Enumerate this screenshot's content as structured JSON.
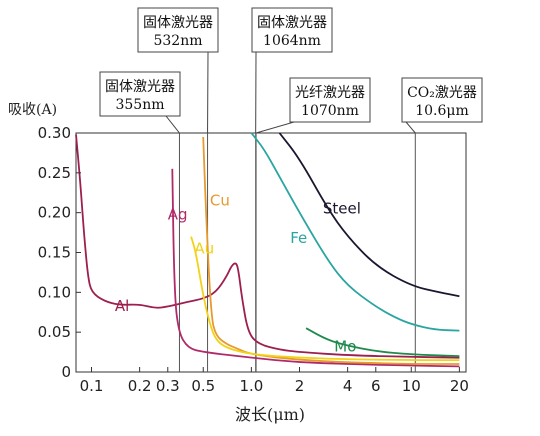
{
  "chart_data": {
    "type": "line",
    "title": "",
    "ylabel": "吸收(A)",
    "xlabel": "波长(μm)",
    "x_scale": "log",
    "xlim": [
      0.08,
      22
    ],
    "ylim": [
      0,
      0.3
    ],
    "grid": false,
    "x_ticks": [
      {
        "value": 0.1,
        "label": "0.1"
      },
      {
        "value": 0.2,
        "label": "0.2"
      },
      {
        "value": 0.3,
        "label": "0.3"
      },
      {
        "value": 0.5,
        "label": "0.5"
      },
      {
        "value": 1.0,
        "label": "1.0"
      },
      {
        "value": 2,
        "label": "2"
      },
      {
        "value": 4,
        "label": "4"
      },
      {
        "value": 6,
        "label": "6"
      },
      {
        "value": 10,
        "label": "10"
      },
      {
        "value": 20,
        "label": "20"
      }
    ],
    "y_ticks": [
      {
        "value": 0,
        "label": "0"
      },
      {
        "value": 0.05,
        "label": "0.05"
      },
      {
        "value": 0.1,
        "label": "0.10"
      },
      {
        "value": 0.15,
        "label": "0.15"
      },
      {
        "value": 0.2,
        "label": "0.20"
      },
      {
        "value": 0.25,
        "label": "0.25"
      },
      {
        "value": 0.3,
        "label": "0.30"
      }
    ],
    "laser_lines": [
      {
        "name": "固体激光器",
        "sub": "355nm",
        "x": 0.355,
        "level": 3
      },
      {
        "name": "固体激光器",
        "sub": "532nm",
        "x": 0.532,
        "level": 1
      },
      {
        "name": "固体激光器",
        "sub": "1064nm",
        "x": 1.064,
        "level": 1
      },
      {
        "name": "光纤激光器",
        "sub": "1070nm",
        "x": 1.07,
        "level": 2
      },
      {
        "name": "CO₂激光器",
        "sub": "10.6μm",
        "x": 10.6,
        "level": 2
      }
    ],
    "series": [
      {
        "name": "Al",
        "color": "#9c1f4e",
        "label_at": [
          0.14,
          0.083
        ],
        "points": [
          [
            0.08,
            0.298
          ],
          [
            0.085,
            0.24
          ],
          [
            0.09,
            0.17
          ],
          [
            0.095,
            0.12
          ],
          [
            0.1,
            0.1
          ],
          [
            0.12,
            0.089
          ],
          [
            0.15,
            0.084
          ],
          [
            0.2,
            0.085
          ],
          [
            0.25,
            0.08
          ],
          [
            0.3,
            0.082
          ],
          [
            0.4,
            0.088
          ],
          [
            0.5,
            0.092
          ],
          [
            0.6,
            0.1
          ],
          [
            0.7,
            0.12
          ],
          [
            0.75,
            0.133
          ],
          [
            0.8,
            0.138
          ],
          [
            0.83,
            0.128
          ],
          [
            0.87,
            0.095
          ],
          [
            0.95,
            0.05
          ],
          [
            1.1,
            0.035
          ],
          [
            1.5,
            0.028
          ],
          [
            2,
            0.025
          ],
          [
            4,
            0.021
          ],
          [
            10,
            0.019
          ],
          [
            20,
            0.018
          ]
        ]
      },
      {
        "name": "Ag",
        "color": "#b02a6a",
        "label_at": [
          0.3,
          0.198
        ],
        "points": [
          [
            0.32,
            0.255
          ],
          [
            0.33,
            0.1
          ],
          [
            0.35,
            0.05
          ],
          [
            0.4,
            0.03
          ],
          [
            0.5,
            0.025
          ],
          [
            1,
            0.018
          ],
          [
            2,
            0.012
          ],
          [
            4,
            0.01
          ],
          [
            10,
            0.008
          ],
          [
            20,
            0.007
          ]
        ]
      },
      {
        "name": "Cu",
        "color": "#e79a2e",
        "label_at": [
          0.55,
          0.215
        ],
        "points": [
          [
            0.5,
            0.295
          ],
          [
            0.52,
            0.2
          ],
          [
            0.56,
            0.07
          ],
          [
            0.6,
            0.045
          ],
          [
            0.7,
            0.035
          ],
          [
            0.8,
            0.03
          ],
          [
            1,
            0.022
          ],
          [
            2,
            0.015
          ],
          [
            4,
            0.012
          ],
          [
            10,
            0.01
          ],
          [
            20,
            0.01
          ]
        ]
      },
      {
        "name": "Au",
        "color": "#f2d214",
        "label_at": [
          0.44,
          0.155
        ],
        "points": [
          [
            0.42,
            0.17
          ],
          [
            0.45,
            0.15
          ],
          [
            0.5,
            0.095
          ],
          [
            0.55,
            0.06
          ],
          [
            0.6,
            0.04
          ],
          [
            0.7,
            0.03
          ],
          [
            1,
            0.022
          ],
          [
            2,
            0.018
          ],
          [
            4,
            0.016
          ],
          [
            10,
            0.015
          ],
          [
            20,
            0.015
          ]
        ]
      },
      {
        "name": "Fe",
        "color": "#2aa5a0",
        "label_at": [
          1.75,
          0.168
        ],
        "points": [
          [
            1.0,
            0.3
          ],
          [
            1.2,
            0.28
          ],
          [
            1.5,
            0.245
          ],
          [
            2,
            0.2
          ],
          [
            3,
            0.14
          ],
          [
            4,
            0.108
          ],
          [
            6,
            0.082
          ],
          [
            8,
            0.068
          ],
          [
            10,
            0.06
          ],
          [
            14,
            0.053
          ],
          [
            20,
            0.052
          ]
        ]
      },
      {
        "name": "Steel",
        "color": "#1b1630",
        "label_at": [
          2.8,
          0.205
        ],
        "points": [
          [
            1.5,
            0.3
          ],
          [
            2,
            0.268
          ],
          [
            3,
            0.205
          ],
          [
            4,
            0.17
          ],
          [
            6,
            0.133
          ],
          [
            10,
            0.108
          ],
          [
            15,
            0.1
          ],
          [
            20,
            0.095
          ]
        ]
      },
      {
        "name": "Mo",
        "color": "#1f8a4c",
        "label_at": [
          3.3,
          0.032
        ],
        "points": [
          [
            2.2,
            0.055
          ],
          [
            3,
            0.04
          ],
          [
            4,
            0.033
          ],
          [
            6,
            0.026
          ],
          [
            10,
            0.022
          ],
          [
            20,
            0.02
          ]
        ]
      }
    ]
  }
}
